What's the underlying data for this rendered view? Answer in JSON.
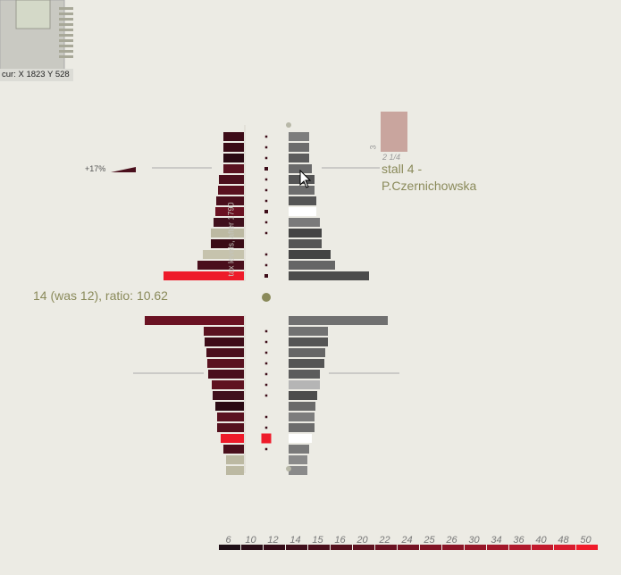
{
  "cursor_readout": "cur: X 1823 Y 528",
  "stall_label": "stall 4 -\nP.Czernichowska",
  "ratio_text": "14 (was 12), ratio: 10.62",
  "percent_label": "+17%",
  "fraction_label": "2 1/4",
  "count_label": "3",
  "vertical_label": "tax levels, after 1790",
  "chart_data": {
    "type": "bar",
    "title": "",
    "legend_scale": {
      "ticks": [
        "6",
        "10",
        "12",
        "14",
        "15",
        "16",
        "20",
        "22",
        "24",
        "25",
        "26",
        "30",
        "34",
        "36",
        "40",
        "48",
        "50"
      ],
      "colors": [
        "#1e0f16",
        "#2a0d17",
        "#350c18",
        "#40101c",
        "#4a0f1c",
        "#55111e",
        "#5f1220",
        "#6a1222",
        "#751324",
        "#801425",
        "#8b1527",
        "#961628",
        "#a2172a",
        "#b0192c",
        "#c21a2d",
        "#d81c2f",
        "#f01c2b"
      ]
    },
    "top_group": {
      "left": [
        {
          "value": 23,
          "color": "#3d0c18"
        },
        {
          "value": 23,
          "color": "#3a0b16"
        },
        {
          "value": 23,
          "color": "#2a0a13"
        },
        {
          "value": 23,
          "color": "#5a1220"
        },
        {
          "value": 28,
          "color": "#4c101d"
        },
        {
          "value": 29,
          "color": "#5a1220"
        },
        {
          "value": 31,
          "color": "#4a0f1c"
        },
        {
          "value": 32,
          "color": "#6a1222"
        },
        {
          "value": 34,
          "color": "#40101c"
        },
        {
          "value": 37,
          "color": "#bcb9a2"
        },
        {
          "value": 37,
          "color": "#3a0b16"
        },
        {
          "value": 46,
          "color": "#c6c3ad"
        },
        {
          "value": 52,
          "color": "#4a0f1c"
        },
        {
          "value": 90,
          "color": "#ee1b2a"
        }
      ],
      "right": [
        {
          "value": 23,
          "color": "#7d7d7d"
        },
        {
          "value": 23,
          "color": "#6c6c6c"
        },
        {
          "value": 23,
          "color": "#5c5c5c"
        },
        {
          "value": 26,
          "color": "#6a6a6a"
        },
        {
          "value": 29,
          "color": "#555555"
        },
        {
          "value": 29,
          "color": "#6e6e6e"
        },
        {
          "value": 31,
          "color": "#555555"
        },
        {
          "value": 31,
          "color": "#ffffff"
        },
        {
          "value": 35,
          "color": "#7a7a7a"
        },
        {
          "value": 37,
          "color": "#444444"
        },
        {
          "value": 37,
          "color": "#555555"
        },
        {
          "value": 47,
          "color": "#444444"
        },
        {
          "value": 52,
          "color": "#666666"
        },
        {
          "value": 90,
          "color": "#4c4c4c"
        }
      ],
      "markers": [
        1,
        1,
        1,
        2,
        1,
        1,
        1,
        2,
        1,
        1,
        0,
        1,
        1,
        2
      ]
    },
    "bottom_group": {
      "left": [
        {
          "value": 111,
          "color": "#6a1222"
        },
        {
          "value": 45,
          "color": "#5a1220"
        },
        {
          "value": 44,
          "color": "#3d0c18"
        },
        {
          "value": 42,
          "color": "#4a0f1c"
        },
        {
          "value": 41,
          "color": "#5a1220"
        },
        {
          "value": 40,
          "color": "#4a0f1c"
        },
        {
          "value": 36,
          "color": "#5f1220"
        },
        {
          "value": 35,
          "color": "#40101c"
        },
        {
          "value": 32,
          "color": "#2a0a13"
        },
        {
          "value": 30,
          "color": "#5a1220"
        },
        {
          "value": 30,
          "color": "#55111e"
        },
        {
          "value": 26,
          "color": "#ee1b2a"
        },
        {
          "value": 23,
          "color": "#4a0f1c"
        },
        {
          "value": 20,
          "color": "#bcb9a2"
        },
        {
          "value": 20,
          "color": "#bcb9a2"
        }
      ],
      "right": [
        {
          "value": 111,
          "color": "#707070"
        },
        {
          "value": 44,
          "color": "#727272"
        },
        {
          "value": 44,
          "color": "#555555"
        },
        {
          "value": 41,
          "color": "#666666"
        },
        {
          "value": 40,
          "color": "#555555"
        },
        {
          "value": 35,
          "color": "#5c5c5c"
        },
        {
          "value": 35,
          "color": "#b5b5b5"
        },
        {
          "value": 32,
          "color": "#4c4c4c"
        },
        {
          "value": 30,
          "color": "#6a6a6a"
        },
        {
          "value": 29,
          "color": "#7d7d7d"
        },
        {
          "value": 29,
          "color": "#6c6c6c"
        },
        {
          "value": 26,
          "color": "#ffffff"
        },
        {
          "value": 23,
          "color": "#7a7a7a"
        },
        {
          "value": 21,
          "color": "#8a8a8a"
        },
        {
          "value": 21,
          "color": "#8a8a8a"
        }
      ],
      "markers": [
        0,
        1,
        1,
        1,
        1,
        1,
        1,
        1,
        0,
        1,
        1,
        3,
        1,
        0,
        0
      ]
    }
  }
}
